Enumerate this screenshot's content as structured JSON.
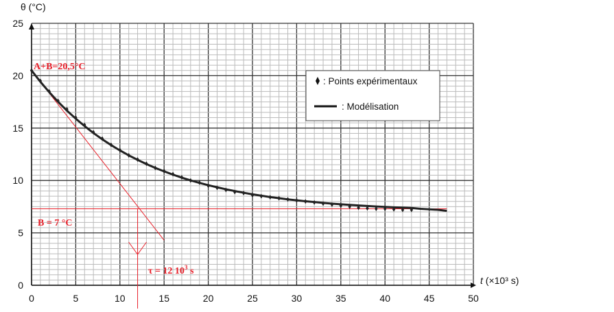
{
  "chart_data": {
    "type": "line",
    "xlabel": "t (×10³ s)",
    "xlabel_italic_part": "t",
    "xlabel_rest": " (×10³ s)",
    "ylabel": "θ (°C)",
    "xlim": [
      0,
      50
    ],
    "ylim": [
      0,
      25
    ],
    "x_ticks": [
      "0",
      "5",
      "10",
      "15",
      "20",
      "25",
      "30",
      "35",
      "40",
      "45",
      "50"
    ],
    "y_ticks": [
      "0",
      "5",
      "10",
      "15",
      "20",
      "25"
    ],
    "grid": true,
    "legend": {
      "placement": "top-right",
      "points_label": ": Points expérimentaux",
      "model_label": ": Modélisation"
    },
    "series": [
      {
        "name": "Points expérimentaux",
        "marker": "diamond",
        "color": "#222222",
        "x": [
          0,
          1,
          2,
          3,
          4,
          5,
          6,
          7,
          8,
          9,
          10,
          11,
          12,
          13,
          14,
          15,
          16,
          17,
          18,
          19,
          20,
          21,
          22,
          23,
          24,
          25,
          26,
          27,
          28,
          29,
          30,
          31,
          32,
          33,
          34,
          35,
          36,
          37,
          38,
          39,
          40,
          41,
          42,
          43
        ],
        "y": [
          20.5,
          19.5,
          18.5,
          17.6,
          16.8,
          16.0,
          15.3,
          14.6,
          14.0,
          13.4,
          12.9,
          12.4,
          12.0,
          11.6,
          11.2,
          10.9,
          10.6,
          10.3,
          10.0,
          9.8,
          9.5,
          9.3,
          9.1,
          8.9,
          8.8,
          8.6,
          8.5,
          8.4,
          8.3,
          8.2,
          8.1,
          8.0,
          7.9,
          7.8,
          7.7,
          7.6,
          7.5,
          7.4,
          7.35,
          7.3,
          7.3,
          7.25,
          7.2,
          7.2
        ]
      },
      {
        "name": "Modélisation",
        "color": "#222222",
        "x": [
          0,
          1,
          2,
          3,
          4,
          5,
          6,
          7,
          8,
          9,
          10,
          11,
          12,
          13,
          14,
          15,
          16,
          17,
          18,
          19,
          20,
          21,
          22,
          23,
          24,
          25,
          26,
          27,
          28,
          29,
          30,
          31,
          32,
          33,
          34,
          35,
          36,
          37,
          38,
          39,
          40,
          41,
          42,
          43,
          44,
          45,
          46,
          47
        ],
        "y": [
          20.5,
          19.42,
          18.43,
          17.51,
          16.67,
          15.9,
          15.19,
          14.53,
          13.93,
          13.38,
          12.87,
          12.4,
          11.97,
          11.57,
          11.2,
          10.87,
          10.56,
          10.27,
          10.01,
          9.77,
          9.55,
          9.35,
          9.16,
          8.99,
          8.83,
          8.68,
          8.55,
          8.42,
          8.31,
          8.2,
          8.11,
          8.02,
          7.94,
          7.86,
          7.79,
          7.73,
          7.67,
          7.62,
          7.57,
          7.52,
          7.48,
          7.44,
          7.41,
          7.38,
          7.3,
          7.25,
          7.2,
          7.1
        ]
      }
    ],
    "annotations": {
      "color": "#e8202a",
      "a_plus_b_label": "A+B=20,5°C",
      "b_label": "B = 7 °C",
      "tau_label_prefix": "τ = 12 10",
      "tau_label_exp": "3",
      "tau_label_suffix": " s",
      "asymptote_y": 7.3,
      "asymptote_x_range": [
        0,
        47
      ],
      "tangent_from": [
        0,
        20.5
      ],
      "tangent_to": [
        15,
        4.3
      ],
      "tau": 12
    }
  }
}
